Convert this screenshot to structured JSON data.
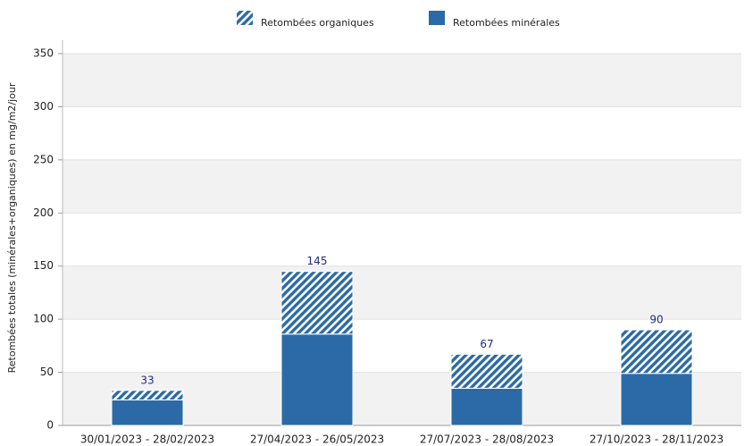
{
  "chart_data": {
    "type": "stacked_bar",
    "y_label": "Retombées totales (minérales+organiques) en mg/m2/jour",
    "categories": [
      "30/01/2023 - 28/02/2023",
      "27/04/2023 - 26/05/2023",
      "27/07/2023 - 28/08/2023",
      "27/10/2023 - 28/11/2023"
    ],
    "series": [
      {
        "name": "Retombées minérales",
        "color": "#2b6aa6",
        "pattern": "solid",
        "values": [
          24,
          86,
          35,
          49
        ]
      },
      {
        "name": "Retombées organiques",
        "color": "#2b6aa6",
        "pattern": "hatch",
        "values": [
          9,
          59,
          32,
          41
        ]
      }
    ],
    "totals": [
      33,
      145,
      67,
      90
    ],
    "legend_order": [
      1,
      0
    ],
    "ylim": [
      0,
      350
    ],
    "yticks": [
      0,
      50,
      100,
      150,
      200,
      250,
      300,
      350
    ],
    "grid": true
  }
}
